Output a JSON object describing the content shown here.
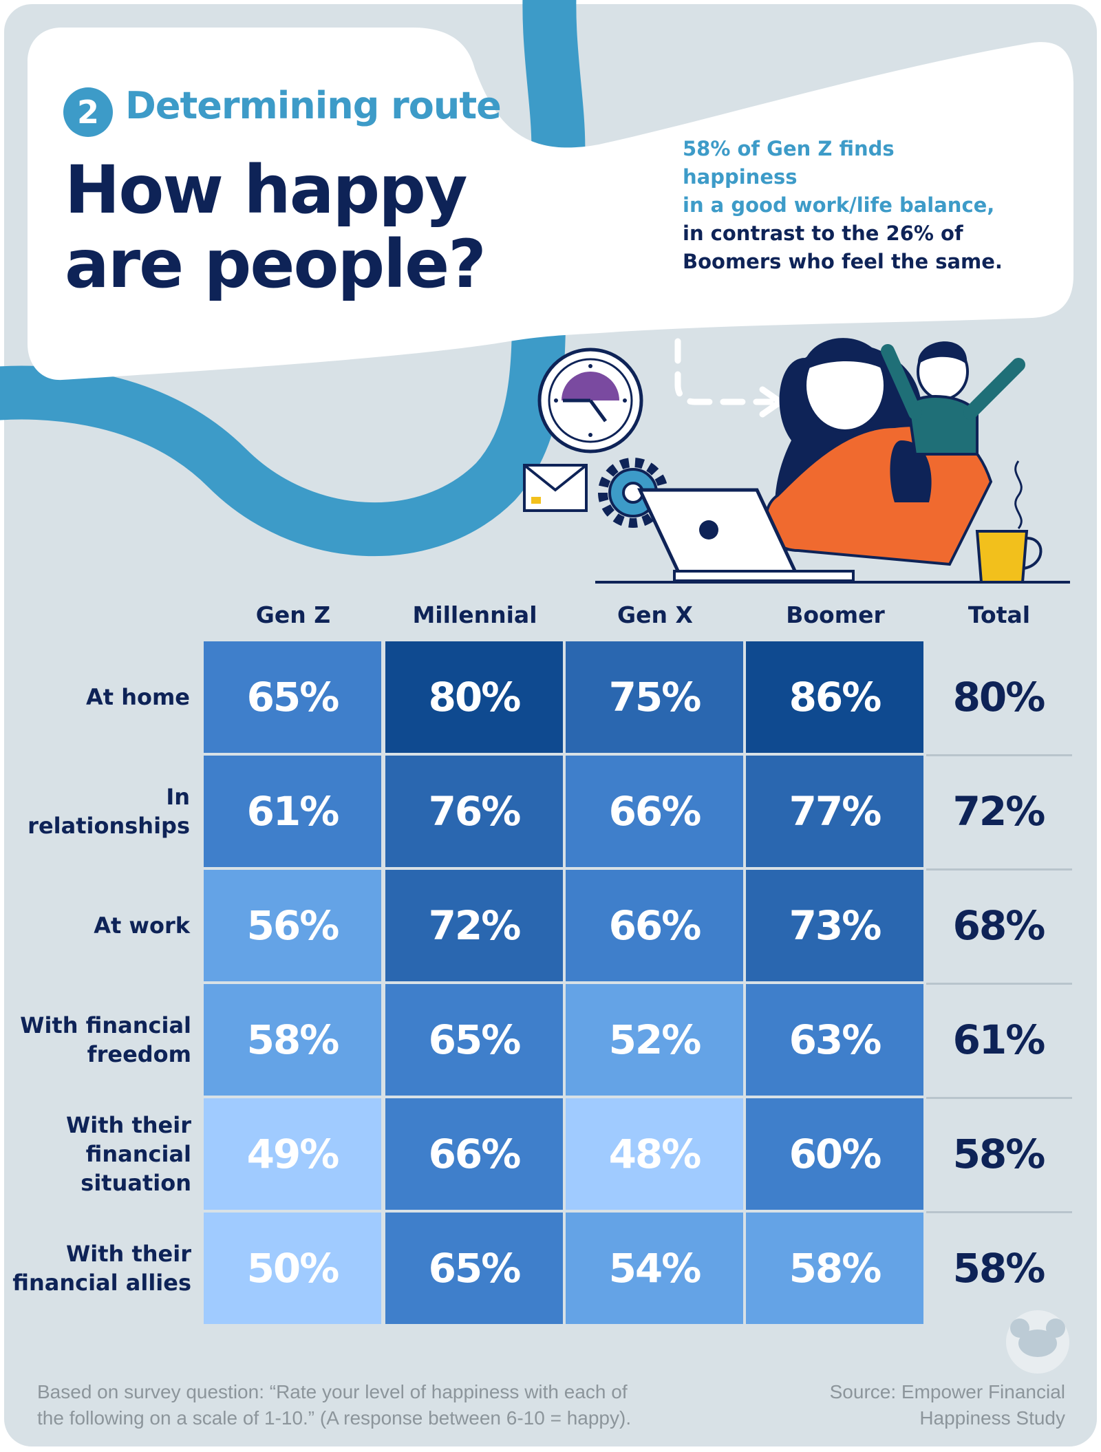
{
  "header": {
    "step_number": "2",
    "step_title": "Determining route",
    "title_line1": "How happy",
    "title_line2": "are people?"
  },
  "callout": {
    "highlight_line1": "58% of Gen Z finds happiness",
    "highlight_line2": "in a good work/life balance,",
    "line3": "in contrast to the 26% of",
    "line4": "Boomers who feel the same."
  },
  "colors": {
    "navy": "#0e2357",
    "accent_blue": "#3d9bc8",
    "background": "#d8e1e6",
    "scale": [
      "#a0cbff",
      "#64a3e6",
      "#3f7fcb",
      "#2a67b0",
      "#0f4a90"
    ]
  },
  "chart_data": {
    "type": "table",
    "title": "How happy are people?",
    "columns": [
      "Gen Z",
      "Millennial",
      "Gen X",
      "Boomer",
      "Total"
    ],
    "rows": [
      {
        "label": "At home",
        "values": [
          "65%",
          "80%",
          "75%",
          "86%",
          "80%"
        ]
      },
      {
        "label": "In relationships",
        "values": [
          "61%",
          "76%",
          "66%",
          "77%",
          "72%"
        ]
      },
      {
        "label": "At work",
        "values": [
          "56%",
          "72%",
          "66%",
          "73%",
          "68%"
        ]
      },
      {
        "label": "With financial freedom",
        "values": [
          "58%",
          "65%",
          "52%",
          "63%",
          "61%"
        ]
      },
      {
        "label": "With their financial situation",
        "values": [
          "49%",
          "66%",
          "48%",
          "60%",
          "58%"
        ]
      },
      {
        "label": "With their financial allies",
        "values": [
          "50%",
          "65%",
          "54%",
          "58%",
          "58%"
        ]
      }
    ]
  },
  "footnote": {
    "line1": "Based on survey question: “Rate your level of happiness with each of",
    "line2": "the following on a scale of 1-10.” (A response between 6-10 = happy)."
  },
  "source": {
    "line1": "Source: Empower Financial",
    "line2": "Happiness Study"
  },
  "icons": [
    "clock-icon",
    "envelope-icon",
    "gear-icon",
    "laptop-icon",
    "coffee-cup-icon",
    "dashed-arrow-icon",
    "piggy-bank-logo-icon"
  ]
}
